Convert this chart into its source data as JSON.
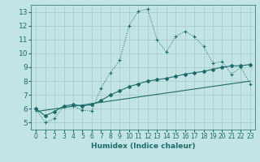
{
  "xlabel": "Humidex (Indice chaleur)",
  "background_color": "#c2e4e4",
  "grid_color": "#a8cccc",
  "line_color": "#1e6b6b",
  "xlim": [
    -0.5,
    23.5
  ],
  "ylim": [
    4.5,
    13.5
  ],
  "yticks": [
    5,
    6,
    7,
    8,
    9,
    10,
    11,
    12,
    13
  ],
  "xticks": [
    0,
    1,
    2,
    3,
    4,
    5,
    6,
    7,
    8,
    9,
    10,
    11,
    12,
    13,
    14,
    15,
    16,
    17,
    18,
    19,
    20,
    21,
    22,
    23
  ],
  "series1_x": [
    0,
    1,
    2,
    3,
    4,
    5,
    6,
    7,
    8,
    9,
    10,
    11,
    12,
    13,
    14,
    15,
    16,
    17,
    18,
    19,
    20,
    21,
    22,
    23
  ],
  "series1_y": [
    6.0,
    5.0,
    5.3,
    6.2,
    6.2,
    5.9,
    5.85,
    7.5,
    8.6,
    9.5,
    12.0,
    13.05,
    13.2,
    11.0,
    10.1,
    11.2,
    11.6,
    11.2,
    10.5,
    9.3,
    9.4,
    8.5,
    9.0,
    7.8
  ],
  "series2_x": [
    0,
    1,
    2,
    3,
    4,
    5,
    6,
    7,
    8,
    9,
    10,
    11,
    12,
    13,
    14,
    15,
    16,
    17,
    18,
    19,
    20,
    21,
    22,
    23
  ],
  "series2_y": [
    6.0,
    5.5,
    5.8,
    6.2,
    6.3,
    6.2,
    6.3,
    6.6,
    7.0,
    7.3,
    7.6,
    7.8,
    8.0,
    8.1,
    8.2,
    8.35,
    8.5,
    8.6,
    8.7,
    8.85,
    9.0,
    9.1,
    9.1,
    9.2
  ],
  "series3_x": [
    0,
    23
  ],
  "series3_y": [
    5.8,
    8.0
  ]
}
